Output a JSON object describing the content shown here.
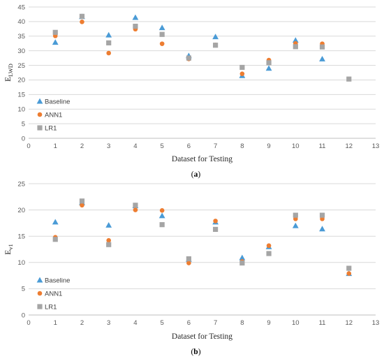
{
  "chart_data": [
    {
      "type": "scatter",
      "panel_label": "(a)",
      "xlabel": "Dataset for Testing",
      "ylabel": "E",
      "ylabel_sub": "LWD",
      "xlim": [
        0,
        13
      ],
      "ylim": [
        0,
        45
      ],
      "xticks": [
        0,
        1,
        2,
        3,
        4,
        5,
        6,
        7,
        8,
        9,
        10,
        11,
        12,
        13
      ],
      "yticks": [
        0,
        5,
        10,
        15,
        20,
        25,
        30,
        35,
        40,
        45
      ],
      "grid": "horizontal",
      "legend_position": "left",
      "series": [
        {
          "name": "Baseline",
          "marker": "triangle",
          "color": "#4a9bd6",
          "x": [
            1,
            2,
            3,
            4,
            5,
            6,
            7,
            8,
            9,
            10,
            11
          ],
          "y": [
            32.9,
            41.7,
            35.4,
            41.4,
            37.9,
            28.3,
            34.8,
            21.5,
            24.0,
            33.6,
            27.2
          ]
        },
        {
          "name": "ANN1",
          "marker": "circle",
          "color": "#ed7d31",
          "x": [
            1,
            2,
            3,
            4,
            5,
            6,
            7,
            8,
            9,
            10,
            11
          ],
          "y": [
            35.1,
            39.9,
            29.2,
            37.4,
            32.4,
            27.2,
            32.0,
            22.1,
            26.8,
            32.5,
            32.4
          ]
        },
        {
          "name": "LR1",
          "marker": "square",
          "color": "#a5a5a5",
          "x": [
            1,
            2,
            3,
            4,
            5,
            6,
            7,
            8,
            9,
            10,
            11,
            12
          ],
          "y": [
            36.3,
            41.8,
            32.7,
            38.4,
            35.6,
            27.5,
            31.9,
            24.3,
            25.9,
            31.4,
            31.3,
            20.3
          ]
        }
      ]
    },
    {
      "type": "scatter",
      "panel_label": "(b)",
      "xlabel": "Dataset for Testing",
      "ylabel": "E",
      "ylabel_sub": "v1",
      "xlim": [
        0,
        13
      ],
      "ylim": [
        0,
        25
      ],
      "xticks": [
        0,
        1,
        2,
        3,
        4,
        5,
        6,
        7,
        8,
        9,
        10,
        11,
        12,
        13
      ],
      "yticks": [
        0,
        5,
        10,
        15,
        20,
        25
      ],
      "grid": "horizontal",
      "legend_position": "left",
      "series": [
        {
          "name": "Baseline",
          "marker": "triangle",
          "color": "#4a9bd6",
          "x": [
            1,
            2,
            3,
            4,
            5,
            6,
            7,
            8,
            9,
            10,
            11,
            12
          ],
          "y": [
            17.7,
            21.4,
            17.1,
            20.8,
            18.9,
            10.6,
            17.7,
            10.9,
            13.0,
            17.0,
            16.4,
            7.9
          ]
        },
        {
          "name": "ANN1",
          "marker": "circle",
          "color": "#ed7d31",
          "x": [
            1,
            2,
            3,
            4,
            5,
            6,
            7,
            8,
            9,
            10,
            11,
            12
          ],
          "y": [
            14.8,
            20.9,
            14.2,
            20.0,
            19.9,
            9.9,
            17.9,
            10.2,
            13.2,
            18.3,
            18.3,
            7.9
          ]
        },
        {
          "name": "LR1",
          "marker": "square",
          "color": "#a5a5a5",
          "x": [
            1,
            2,
            3,
            4,
            5,
            6,
            7,
            8,
            9,
            10,
            11,
            12
          ],
          "y": [
            14.4,
            21.7,
            13.4,
            20.9,
            17.2,
            10.7,
            16.3,
            9.9,
            11.7,
            19.0,
            19.0,
            8.9
          ]
        }
      ]
    }
  ]
}
